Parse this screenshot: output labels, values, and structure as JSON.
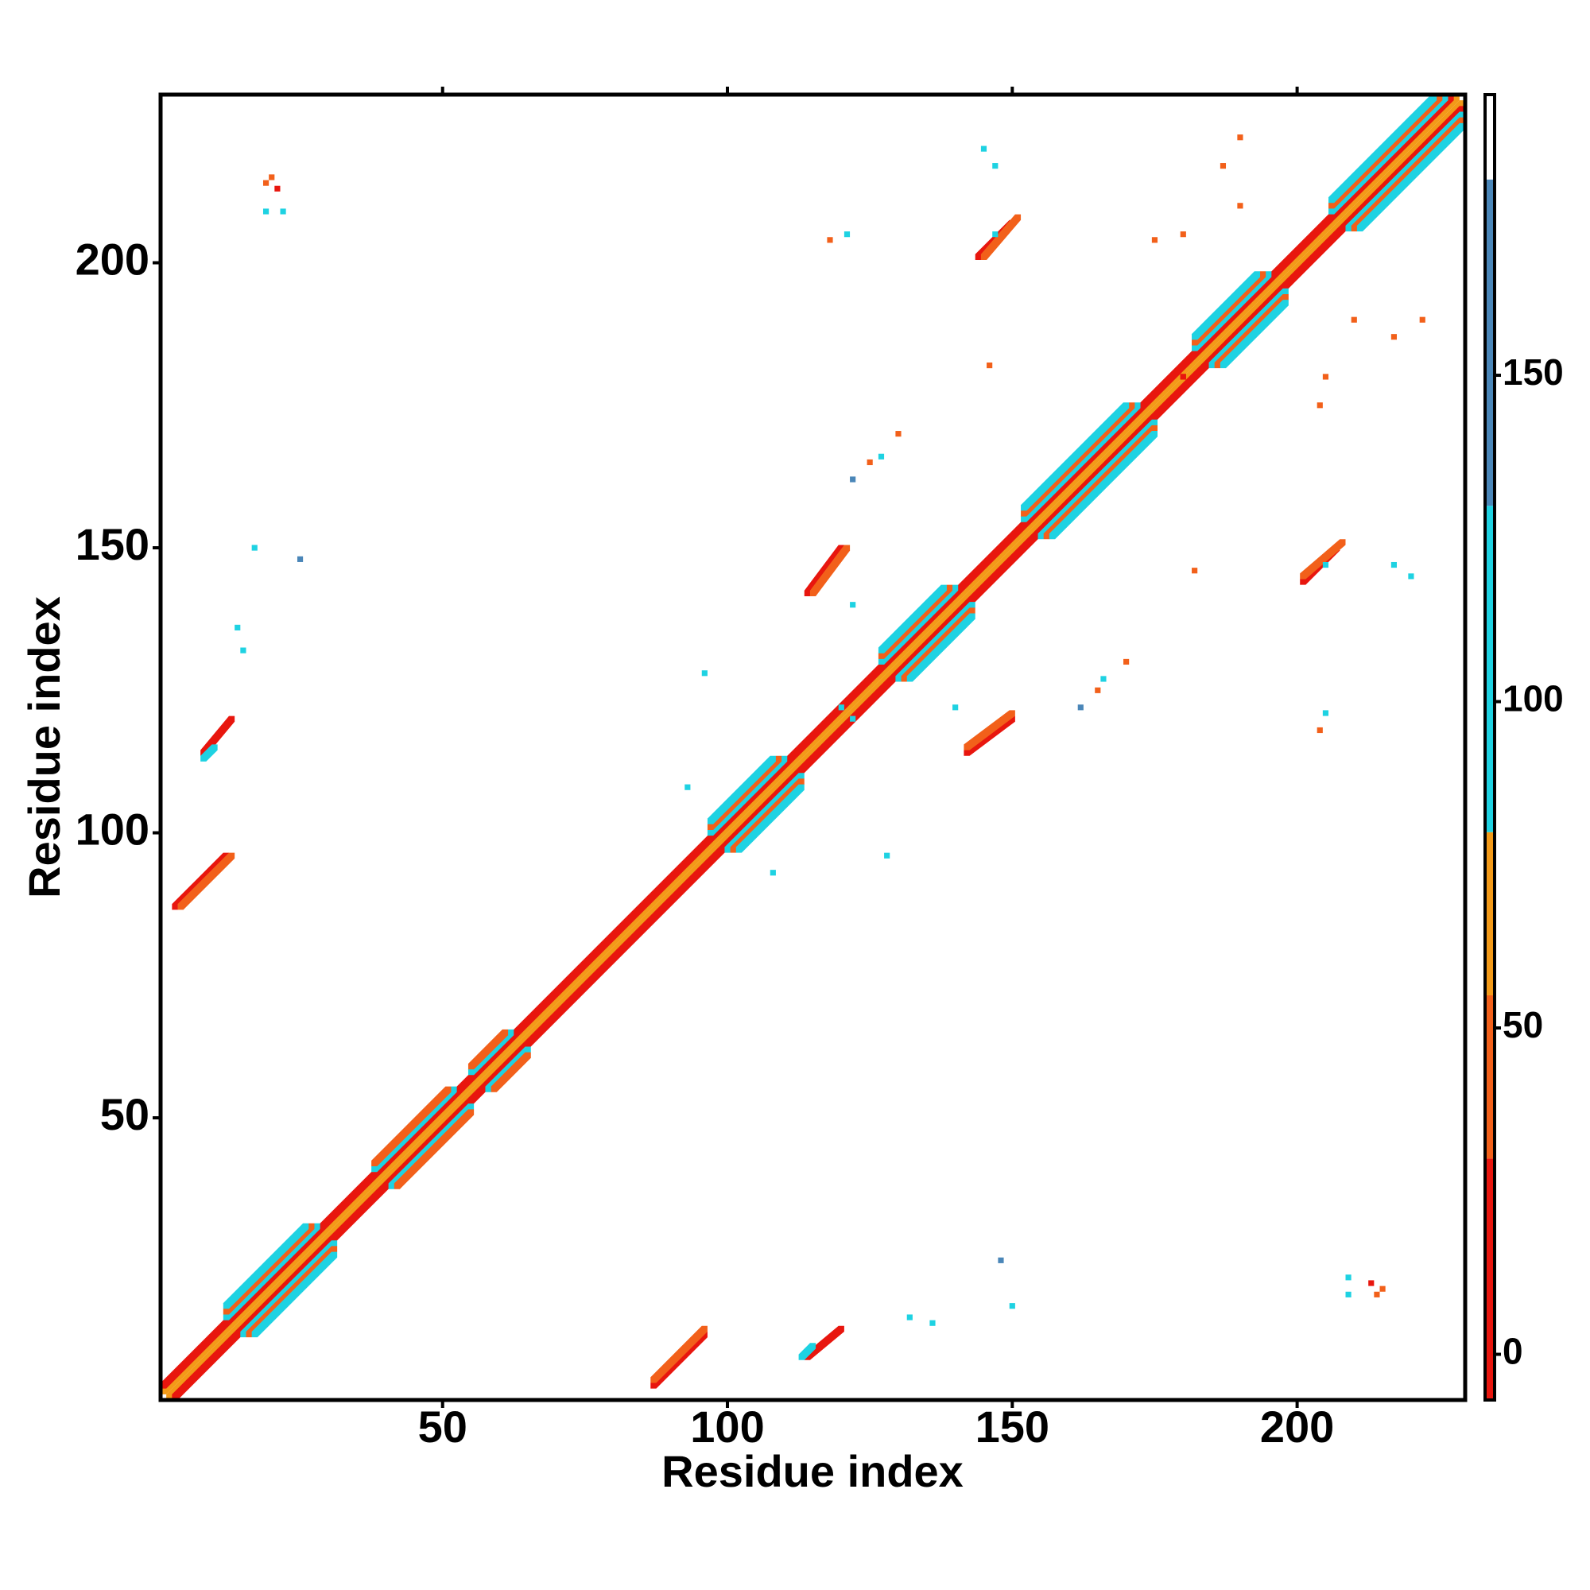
{
  "chart_data": {
    "type": "contact-map",
    "xlabel": "Residue index",
    "ylabel": "Residue index",
    "xlim": [
      0.5,
      229.5
    ],
    "ylim": [
      0.5,
      229.5
    ],
    "xticks": [
      50,
      100,
      150,
      200
    ],
    "yticks": [
      50,
      100,
      150,
      200
    ],
    "symmetric": true,
    "colorbar": {
      "lim": [
        -7,
        193
      ],
      "ticks": [
        0,
        50,
        100,
        150
      ],
      "edges": [
        -7,
        30,
        55,
        80,
        130,
        180,
        193
      ],
      "colors": [
        "#e8160e",
        "#f2601a",
        "#f39a18",
        "#1ed2e2",
        "#4a86b8",
        "#ffffff"
      ]
    },
    "strands": [
      {
        "x": [
          1,
          228
        ],
        "y": [
          2,
          229
        ],
        "value": 60
      },
      {
        "x": [
          1,
          227
        ],
        "y": [
          3,
          229
        ],
        "value": 15
      },
      {
        "x": [
          12,
          28
        ],
        "y": [
          15,
          31
        ],
        "value": 95
      },
      {
        "x": [
          12,
          27
        ],
        "y": [
          16,
          31
        ],
        "value": 50
      },
      {
        "x": [
          12,
          26
        ],
        "y": [
          17,
          31
        ],
        "value": 110
      },
      {
        "x": [
          38,
          52
        ],
        "y": [
          41,
          55
        ],
        "value": 95
      },
      {
        "x": [
          38,
          51
        ],
        "y": [
          42,
          55
        ],
        "value": 45
      },
      {
        "x": [
          55,
          62
        ],
        "y": [
          58,
          65
        ],
        "value": 95
      },
      {
        "x": [
          55,
          61
        ],
        "y": [
          59,
          65
        ],
        "value": 50
      },
      {
        "x": [
          97,
          110
        ],
        "y": [
          100,
          113
        ],
        "value": 95
      },
      {
        "x": [
          97,
          109
        ],
        "y": [
          101,
          113
        ],
        "value": 50
      },
      {
        "x": [
          97,
          108
        ],
        "y": [
          102,
          113
        ],
        "value": 110
      },
      {
        "x": [
          127,
          140
        ],
        "y": [
          130,
          143
        ],
        "value": 95
      },
      {
        "x": [
          127,
          139
        ],
        "y": [
          131,
          143
        ],
        "value": 50
      },
      {
        "x": [
          127,
          138
        ],
        "y": [
          132,
          143
        ],
        "value": 110
      },
      {
        "x": [
          152,
          172
        ],
        "y": [
          155,
          175
        ],
        "value": 95
      },
      {
        "x": [
          152,
          171
        ],
        "y": [
          156,
          175
        ],
        "value": 50
      },
      {
        "x": [
          152,
          170
        ],
        "y": [
          157,
          175
        ],
        "value": 110
      },
      {
        "x": [
          182,
          195
        ],
        "y": [
          185,
          198
        ],
        "value": 95
      },
      {
        "x": [
          182,
          194
        ],
        "y": [
          186,
          198
        ],
        "value": 50
      },
      {
        "x": [
          182,
          193
        ],
        "y": [
          187,
          198
        ],
        "value": 110
      },
      {
        "x": [
          206,
          226
        ],
        "y": [
          209,
          229
        ],
        "value": 95
      },
      {
        "x": [
          206,
          225
        ],
        "y": [
          210,
          229
        ],
        "value": 50
      },
      {
        "x": [
          206,
          224
        ],
        "y": [
          211,
          229
        ],
        "value": 110
      },
      {
        "x": [
          3,
          12
        ],
        "y": [
          87,
          96
        ],
        "value": 5
      },
      {
        "x": [
          4,
          13
        ],
        "y": [
          87,
          96
        ],
        "value": 40
      },
      {
        "x": [
          8,
          13
        ],
        "y": [
          114,
          120
        ],
        "value": 20
      },
      {
        "x": [
          8,
          10
        ],
        "y": [
          113,
          115
        ],
        "value": 95
      },
      {
        "x": [
          114,
          120
        ],
        "y": [
          142,
          150
        ],
        "value": 10
      },
      {
        "x": [
          115,
          121
        ],
        "y": [
          142,
          150
        ],
        "value": 45
      },
      {
        "x": [
          144,
          150
        ],
        "y": [
          201,
          207
        ],
        "value": 10
      },
      {
        "x": [
          145,
          151
        ],
        "y": [
          201,
          208
        ],
        "value": 45
      }
    ],
    "cells": {
      "x": [
        20,
        21,
        19,
        22,
        118,
        121,
        175,
        187,
        190,
        145,
        182,
        205,
        217,
        210,
        205,
        180,
        130,
        127,
        122,
        125,
        14,
        15,
        17,
        25,
        133,
        140,
        120,
        108,
        96,
        214
      ],
      "y": [
        215,
        213,
        209,
        209,
        204,
        205,
        204,
        217,
        222,
        220,
        146,
        147,
        147,
        190,
        180,
        180,
        170,
        166,
        162,
        165,
        136,
        132,
        150,
        148,
        128,
        122,
        122,
        93,
        128,
        19
      ],
      "values": [
        40,
        5,
        95,
        95,
        50,
        95,
        40,
        40,
        40,
        95,
        40,
        95,
        95,
        40,
        40,
        15,
        40,
        95,
        140,
        40,
        95,
        95,
        95,
        140,
        95,
        95,
        95,
        95,
        95,
        40
      ]
    }
  }
}
